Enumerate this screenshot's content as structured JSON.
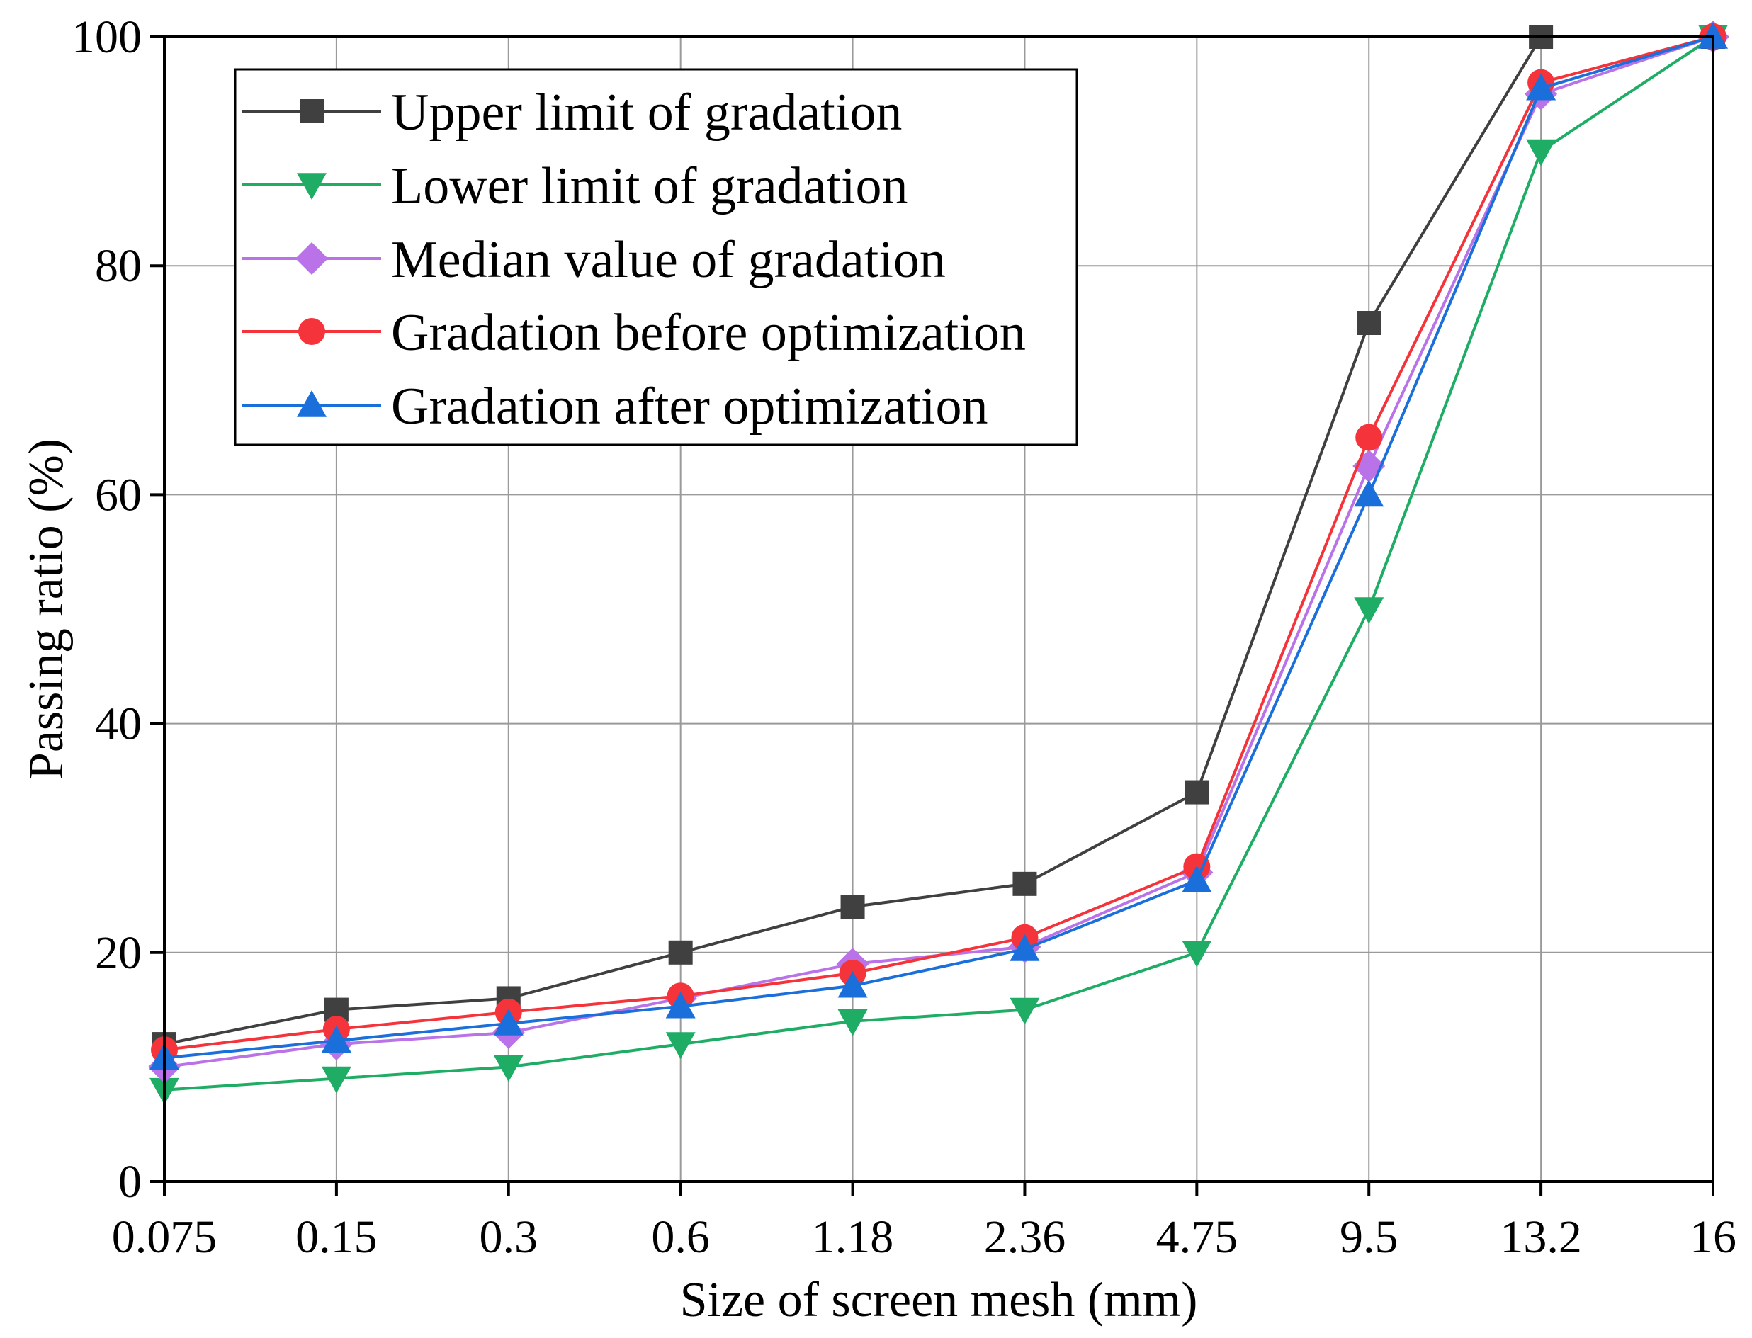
{
  "chart_data": {
    "type": "line",
    "xlabel": "Size of screen mesh (mm)",
    "ylabel": "Passing ratio (%)",
    "categories": [
      "0.075",
      "0.15",
      "0.3",
      "0.6",
      "1.18",
      "2.36",
      "4.75",
      "9.5",
      "13.2",
      "16"
    ],
    "ylim": [
      0,
      100
    ],
    "yticks": [
      "0",
      "20",
      "40",
      "60",
      "80",
      "100"
    ],
    "grid": true,
    "legend_position": "top-left",
    "series": [
      {
        "name": "Upper limit of gradation",
        "color": "#404040",
        "marker": "square",
        "values": [
          12,
          15,
          16,
          20,
          24,
          26,
          34,
          75,
          100,
          100
        ]
      },
      {
        "name": "Lower limit of gradation",
        "color": "#1fad66",
        "marker": "triangle-down",
        "values": [
          8,
          9,
          10,
          12,
          14,
          15,
          20,
          50,
          90,
          100
        ]
      },
      {
        "name": "Median value of gradation",
        "color": "#b972e8",
        "marker": "diamond",
        "values": [
          10,
          12,
          13,
          16,
          19,
          20.5,
          27,
          62.5,
          95,
          100
        ]
      },
      {
        "name": "Gradation before optimization",
        "color": "#f5333b",
        "marker": "circle",
        "values": [
          11.5,
          13.3,
          14.8,
          16.2,
          18.2,
          21.3,
          27.5,
          65,
          96,
          100
        ]
      },
      {
        "name": "Gradation after optimization",
        "color": "#1a6fdb",
        "marker": "triangle-up",
        "values": [
          10.8,
          12.3,
          13.8,
          15.3,
          17.1,
          20.3,
          26.3,
          60,
          95.5,
          100
        ]
      }
    ]
  }
}
